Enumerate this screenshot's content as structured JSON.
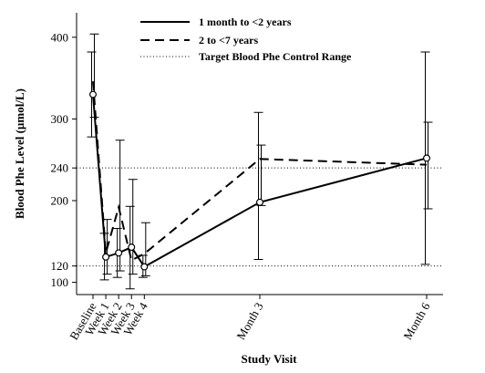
{
  "chart_data": {
    "type": "line",
    "title": "",
    "xlabel": "Study Visit",
    "ylabel": "Blood Phe Level (µmol/L)",
    "x_categories": [
      "Baseline",
      "Week 1",
      "Week 2",
      "Week 3",
      "Week 4",
      "Month 3",
      "Month 6"
    ],
    "x_positions_weeks": [
      0,
      1,
      2,
      3,
      4,
      13,
      26
    ],
    "y_ticks": [
      100,
      120,
      200,
      240,
      300,
      400
    ],
    "ylim": [
      85,
      430
    ],
    "grid": false,
    "legend_position": "top-right",
    "series": [
      {
        "name": "1 month to <2 years",
        "line_style": "solid",
        "markers": true,
        "values": [
          330,
          131,
          136,
          143,
          119,
          198,
          252
        ],
        "ci_low": [
          278,
          103,
          106,
          92,
          106,
          128,
          122
        ],
        "ci_high": [
          382,
          160,
          166,
          193,
          133,
          308,
          382
        ]
      },
      {
        "name": "2 to <7 years",
        "line_style": "dashed",
        "markers": false,
        "values": [
          346,
          136,
          192,
          127,
          135,
          251,
          244
        ],
        "ci_low": [
          302,
          110,
          114,
          110,
          108,
          194,
          190
        ],
        "ci_high": [
          404,
          177,
          274,
          226,
          173,
          268,
          296
        ]
      }
    ],
    "reference_lines": [
      {
        "name": "Target Blood Phe Control Range",
        "style": "dotted",
        "values": [
          120,
          240
        ]
      }
    ]
  }
}
